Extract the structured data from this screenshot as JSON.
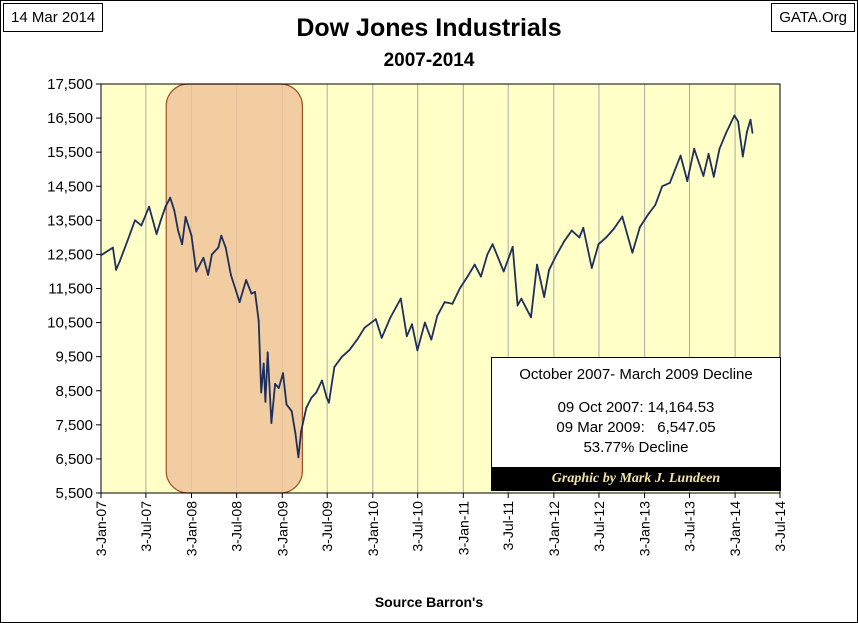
{
  "header": {
    "date": "14 Mar 2014",
    "source_site": "GATA.Org"
  },
  "colors": {
    "plot_background": "#ffffc8",
    "highlight_fill": "#eec49a",
    "line": "#1f2f5c",
    "grid": "#aaaaaa"
  },
  "annotation": {
    "title": "October 2007- March 2009 Decline",
    "line1": "09 Oct 2007: 14,164.53",
    "line2": "09 Mar 2009:   6,547.05",
    "line3": "53.77% Decline",
    "credit": "Graphic by Mark J. Lundeen"
  },
  "chart_data": {
    "type": "line",
    "title": "Dow Jones Industrials",
    "subtitle": "2007-2014",
    "xlabel": "Source Barron's",
    "ylabel": "",
    "ylim": [
      5500,
      17500
    ],
    "yticks": [
      5500,
      6500,
      7500,
      8500,
      9500,
      10500,
      11500,
      12500,
      13500,
      14500,
      15500,
      16500,
      17500
    ],
    "ytick_labels": [
      "5,500",
      "6,500",
      "7,500",
      "8,500",
      "9,500",
      "10,500",
      "11,500",
      "12,500",
      "13,500",
      "14,500",
      "15,500",
      "16,500",
      "17,500"
    ],
    "xticks": [
      "2007-01-03",
      "2007-07-03",
      "2008-01-03",
      "2008-07-03",
      "2009-01-03",
      "2009-07-03",
      "2010-01-03",
      "2010-07-03",
      "2011-01-03",
      "2011-07-03",
      "2012-01-03",
      "2012-07-03",
      "2013-01-03",
      "2013-07-03",
      "2014-01-03",
      "2014-07-03"
    ],
    "xtick_labels": [
      "3-Jan-07",
      "3-Jul-07",
      "3-Jan-08",
      "3-Jul-08",
      "3-Jan-09",
      "3-Jul-09",
      "3-Jan-10",
      "3-Jul-10",
      "3-Jan-11",
      "3-Jul-11",
      "3-Jan-12",
      "3-Jul-12",
      "3-Jan-13",
      "3-Jul-13",
      "3-Jan-14",
      "3-Jul-14"
    ],
    "xlim": [
      "2007-01-03",
      "2014-07-03"
    ],
    "grid": "vertical",
    "highlight_range": [
      "2007-10-09",
      "2009-03-09"
    ],
    "series": [
      {
        "name": "",
        "x": [
          "2007-01-03",
          "2007-02-20",
          "2007-03-05",
          "2007-03-20",
          "2007-04-20",
          "2007-05-20",
          "2007-06-15",
          "2007-07-16",
          "2007-08-15",
          "2007-09-01",
          "2007-09-20",
          "2007-10-09",
          "2007-10-25",
          "2007-11-10",
          "2007-11-26",
          "2007-12-10",
          "2008-01-03",
          "2008-01-22",
          "2008-02-20",
          "2008-03-10",
          "2008-03-25",
          "2008-04-20",
          "2008-05-02",
          "2008-05-20",
          "2008-06-10",
          "2008-07-15",
          "2008-08-10",
          "2008-09-01",
          "2008-09-15",
          "2008-09-30",
          "2008-10-10",
          "2008-10-20",
          "2008-10-27",
          "2008-11-05",
          "2008-11-20",
          "2008-12-05",
          "2008-12-20",
          "2009-01-06",
          "2009-01-20",
          "2009-02-10",
          "2009-02-25",
          "2009-03-09",
          "2009-03-20",
          "2009-04-10",
          "2009-05-01",
          "2009-05-20",
          "2009-06-12",
          "2009-07-01",
          "2009-07-10",
          "2009-08-01",
          "2009-09-01",
          "2009-10-01",
          "2009-11-01",
          "2009-12-01",
          "2010-01-15",
          "2010-02-08",
          "2010-03-15",
          "2010-04-26",
          "2010-05-20",
          "2010-06-10",
          "2010-07-02",
          "2010-08-01",
          "2010-08-27",
          "2010-09-20",
          "2010-10-20",
          "2010-11-20",
          "2010-12-20",
          "2011-01-20",
          "2011-02-18",
          "2011-03-15",
          "2011-04-10",
          "2011-05-01",
          "2011-06-15",
          "2011-07-21",
          "2011-08-10",
          "2011-08-25",
          "2011-09-15",
          "2011-10-03",
          "2011-10-27",
          "2011-11-25",
          "2011-12-15",
          "2012-01-15",
          "2012-02-15",
          "2012-03-15",
          "2012-04-15",
          "2012-05-01",
          "2012-06-04",
          "2012-07-01",
          "2012-08-01",
          "2012-09-01",
          "2012-10-05",
          "2012-11-15",
          "2012-12-15",
          "2013-01-20",
          "2013-02-15",
          "2013-03-15",
          "2013-04-15",
          "2013-05-28",
          "2013-06-24",
          "2013-07-22",
          "2013-08-28",
          "2013-09-18",
          "2013-10-09",
          "2013-11-01",
          "2013-11-27",
          "2013-12-31",
          "2014-01-15",
          "2014-02-03",
          "2014-02-20",
          "2014-03-06",
          "2014-03-14"
        ],
        "y": [
          12474,
          12700,
          12050,
          12300,
          12900,
          13500,
          13350,
          13900,
          13100,
          13500,
          13900,
          14164,
          13800,
          13200,
          12800,
          13600,
          13050,
          12000,
          12400,
          11900,
          12500,
          12700,
          13050,
          12700,
          11900,
          11100,
          11750,
          11350,
          11400,
          10550,
          8450,
          9300,
          8175,
          9625,
          7552,
          8700,
          8580,
          9015,
          8100,
          7900,
          7250,
          6547,
          7300,
          8000,
          8300,
          8450,
          8800,
          8300,
          8150,
          9200,
          9500,
          9700,
          10000,
          10350,
          10600,
          10050,
          10650,
          11205,
          10100,
          10450,
          9686,
          10500,
          10000,
          10700,
          11100,
          11050,
          11500,
          11850,
          12200,
          11850,
          12500,
          12800,
          12000,
          12724,
          11000,
          11200,
          10900,
          10655,
          12200,
          11250,
          12050,
          12500,
          12900,
          13200,
          13000,
          13280,
          12101,
          12800,
          13000,
          13250,
          13610,
          12550,
          13300,
          13700,
          13950,
          14500,
          14600,
          15400,
          14650,
          15600,
          14800,
          15450,
          14776,
          15600,
          16050,
          16577,
          16400,
          15372,
          16100,
          16450,
          16065
        ]
      }
    ]
  }
}
